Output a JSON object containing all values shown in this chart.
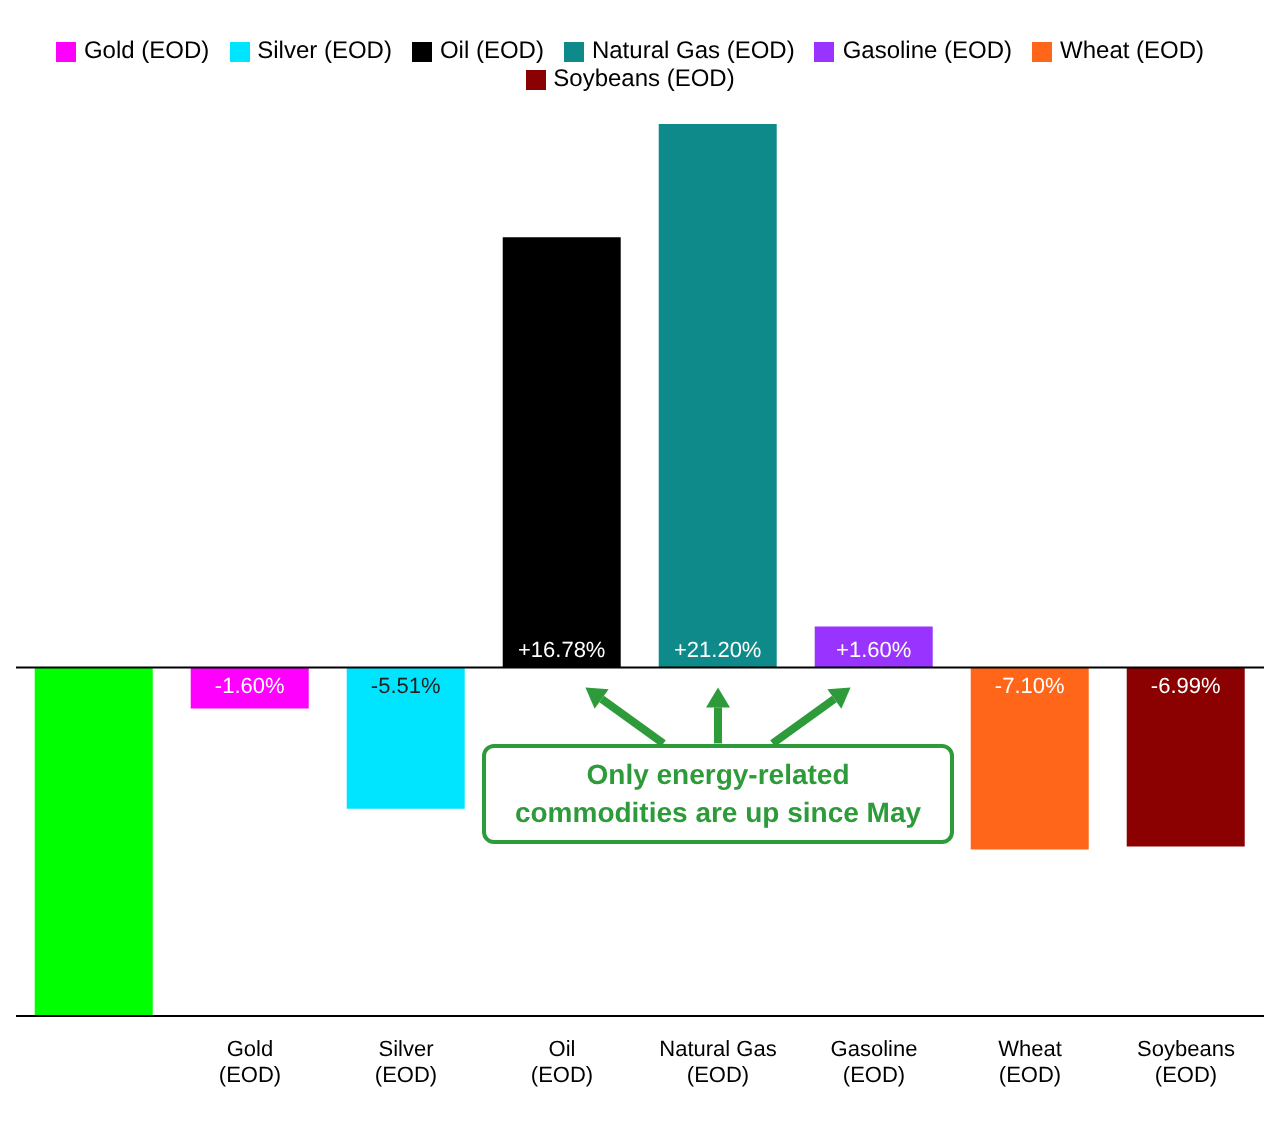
{
  "chart_data": {
    "type": "bar",
    "categories": [
      null,
      "Gold (EOD)",
      "Silver (EOD)",
      "Oil (EOD)",
      "Natural Gas (EOD)",
      "Gasoline (EOD)",
      "Wheat (EOD)",
      "Soybeans (EOD)"
    ],
    "stacked": true,
    "series": [
      {
        "color": "#00ff00",
        "values": [
          -13.6,
          null,
          null,
          null,
          null,
          null,
          null,
          null
        ]
      },
      {
        "name": "Gold (EOD)",
        "color": "#ff00ff",
        "values": [
          null,
          -1.6,
          null,
          null,
          null,
          null,
          null,
          null
        ],
        "value_labels": [
          null,
          "-1.60%",
          null,
          null,
          null,
          null,
          null,
          null
        ]
      },
      {
        "name": "Silver (EOD)",
        "color": "#00e5ff",
        "values": [
          null,
          null,
          -5.51,
          null,
          null,
          null,
          null,
          null
        ],
        "value_labels": [
          null,
          null,
          "-5.51%",
          null,
          null,
          null,
          null,
          null
        ]
      },
      {
        "name": "Oil (EOD)",
        "color": "#000000",
        "values": [
          null,
          null,
          null,
          16.78,
          null,
          null,
          null,
          null
        ],
        "value_labels": [
          null,
          null,
          null,
          "+16.78%",
          null,
          null,
          null,
          null
        ]
      },
      {
        "name": "Natural Gas (EOD)",
        "color": "#0f8a8a",
        "values": [
          null,
          null,
          null,
          null,
          21.2,
          null,
          null,
          null
        ],
        "value_labels": [
          null,
          null,
          null,
          null,
          "+21.20%",
          null,
          null,
          null
        ]
      },
      {
        "name": "Gasoline (EOD)",
        "color": "#9933ff",
        "values": [
          null,
          null,
          null,
          null,
          null,
          1.6,
          null,
          null
        ],
        "value_labels": [
          null,
          null,
          null,
          null,
          null,
          "+1.60%",
          null,
          null
        ]
      },
      {
        "name": "Wheat (EOD)",
        "color": "#ff6619",
        "values": [
          null,
          null,
          null,
          null,
          null,
          null,
          -7.1,
          null
        ],
        "value_labels": [
          null,
          null,
          null,
          null,
          null,
          null,
          "-7.10%",
          null
        ]
      },
      {
        "name": "Soybeans (EOD)",
        "color": "#8b0000",
        "values": [
          null,
          null,
          null,
          null,
          null,
          null,
          null,
          -6.99
        ],
        "value_labels": [
          null,
          null,
          null,
          null,
          null,
          null,
          null,
          "-6.99%"
        ]
      }
    ],
    "tick_labels": "x",
    "legend": "top",
    "ref_lines": [
      {
        "axis": "y",
        "value": 0,
        "color": "#000000"
      }
    ],
    "annotations": [
      "Only energy-related commodities are up since May"
    ]
  }
}
